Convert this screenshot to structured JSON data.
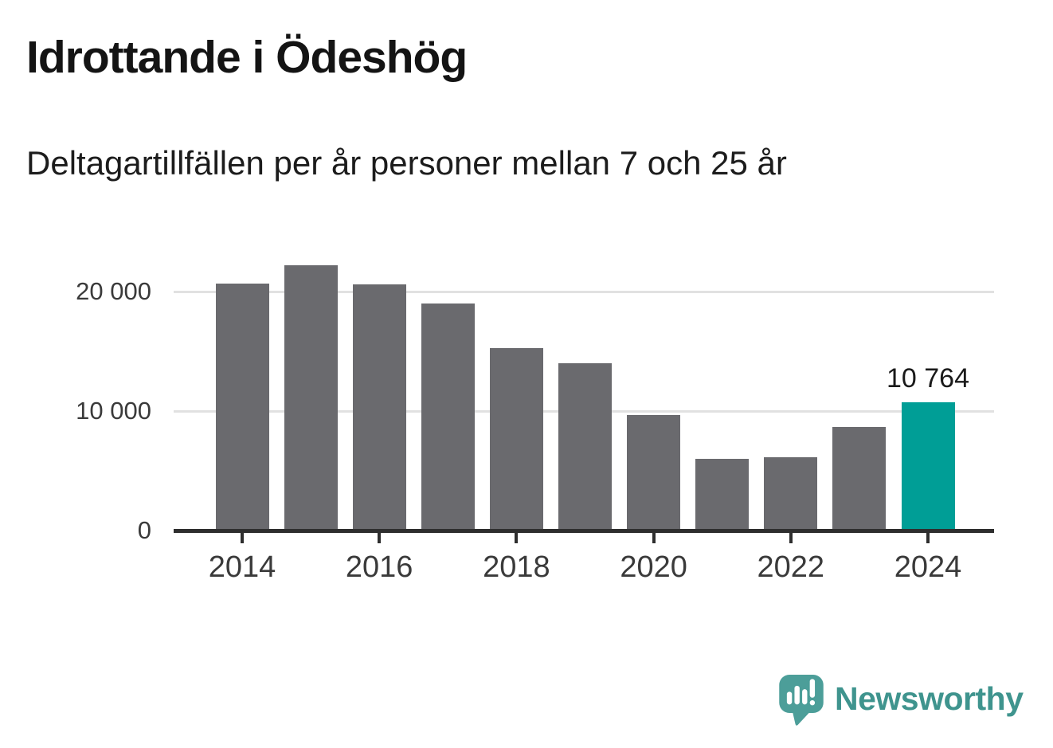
{
  "header": {
    "title": "Idrottande i Ödeshög",
    "subtitle": "Deltagartillfällen per år personer mellan 7 och 25 år"
  },
  "chart_data": {
    "type": "bar",
    "title": "Idrottande i Ödeshög",
    "subtitle": "Deltagartillfällen per år personer mellan 7 och 25 år",
    "categories": [
      "2014",
      "2015",
      "2016",
      "2017",
      "2018",
      "2019",
      "2020",
      "2021",
      "2022",
      "2023",
      "2024"
    ],
    "values": [
      20700,
      22250,
      20650,
      19000,
      15300,
      14050,
      9700,
      6030,
      6140,
      8700,
      10764
    ],
    "highlight_index": 10,
    "annotation": {
      "text": "10 764",
      "index": 10
    },
    "x_tick_labels": [
      "2014",
      "2016",
      "2018",
      "2020",
      "2022",
      "2024"
    ],
    "y_ticks": [
      {
        "label": "0",
        "value": 0
      },
      {
        "label": "10 000",
        "value": 10000
      },
      {
        "label": "20 000",
        "value": 20000
      }
    ],
    "ylim": [
      0,
      23000
    ],
    "xlabel": "",
    "ylabel": "",
    "grid": "horizontal",
    "legend": "none",
    "colors": {
      "bar": "#6a6a6e",
      "highlight": "#009e96",
      "gridline": "#e1e1e1",
      "axis": "#2e2e2e",
      "tick_label": "#3a3a3a",
      "value_label": "#1a1a1a"
    }
  },
  "footer": {
    "brand": "Newsworthy",
    "logo_icon": "speech-bubble-bar-chart-exclamation",
    "logo_color": "#4c9e99",
    "logo_text_color": "#3f948e"
  }
}
